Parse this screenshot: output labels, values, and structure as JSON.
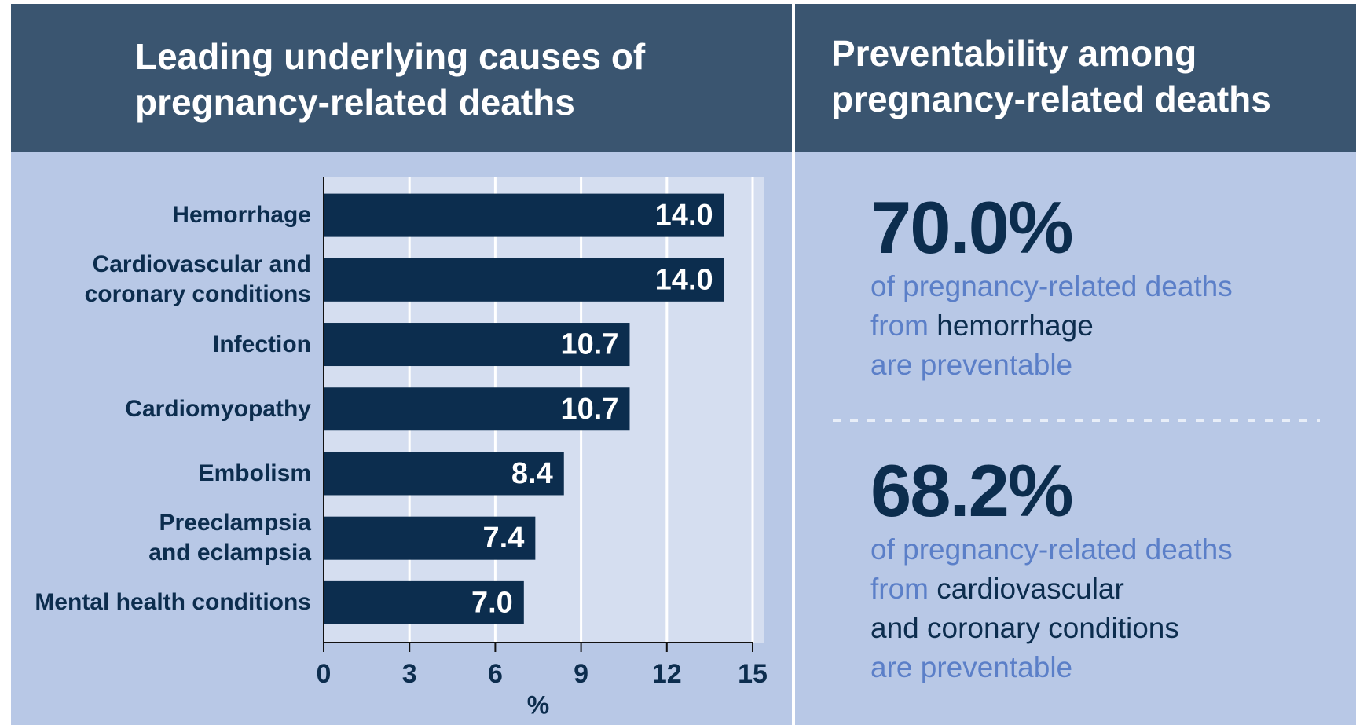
{
  "chart_data": {
    "type": "bar",
    "orientation": "horizontal",
    "title": "Leading underlying causes of pregnancy-related deaths",
    "categories": [
      "Hemorrhage",
      "Cardiovascular and\ncoronary conditions",
      "Infection",
      "Cardiomyopathy",
      "Embolism",
      "Preeclampsia\nand eclampsia",
      "Mental health conditions"
    ],
    "values": [
      14.0,
      14.0,
      10.7,
      10.7,
      8.4,
      7.4,
      7.0
    ],
    "value_labels": [
      "14.0",
      "14.0",
      "10.7",
      "10.7",
      "8.4",
      "7.4",
      "7.0"
    ],
    "color": "#0c2d4e",
    "xlabel": "%",
    "xlim": [
      0,
      15
    ],
    "xticks": [
      0,
      3,
      6,
      9,
      12,
      15
    ],
    "grid": true
  },
  "preventability": {
    "title": "Preventability among pregnancy-related deaths",
    "items": [
      {
        "value": "70.0%",
        "lead": "of pregnancy-related deaths",
        "from": "from",
        "cause": "hemorrhage",
        "tail": "are preventable"
      },
      {
        "value": "68.2%",
        "lead": "of pregnancy-related deaths",
        "from": "from",
        "cause": "cardiovascular\nand coronary conditions",
        "tail": "are preventable"
      }
    ]
  }
}
